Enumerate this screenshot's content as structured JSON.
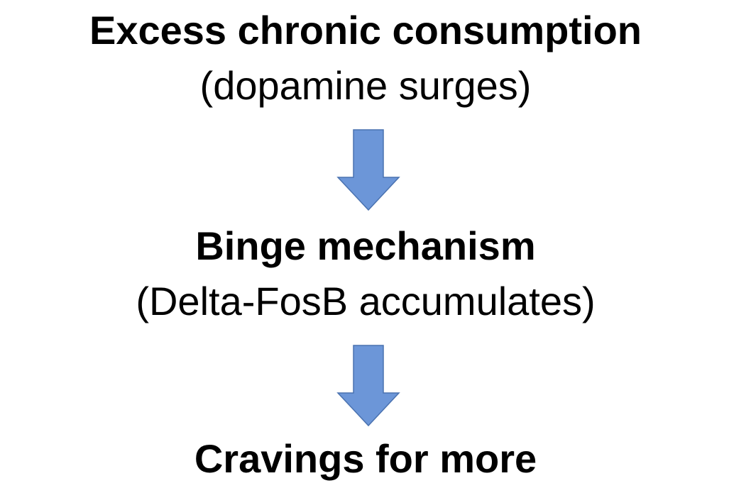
{
  "nodes": [
    {
      "label": "Excess chronic consumption",
      "sublabel": "(dopamine surges)"
    },
    {
      "label": "Binge mechanism",
      "sublabel": "(Delta-FosB accumulates)"
    },
    {
      "label": "Cravings for more"
    }
  ]
}
